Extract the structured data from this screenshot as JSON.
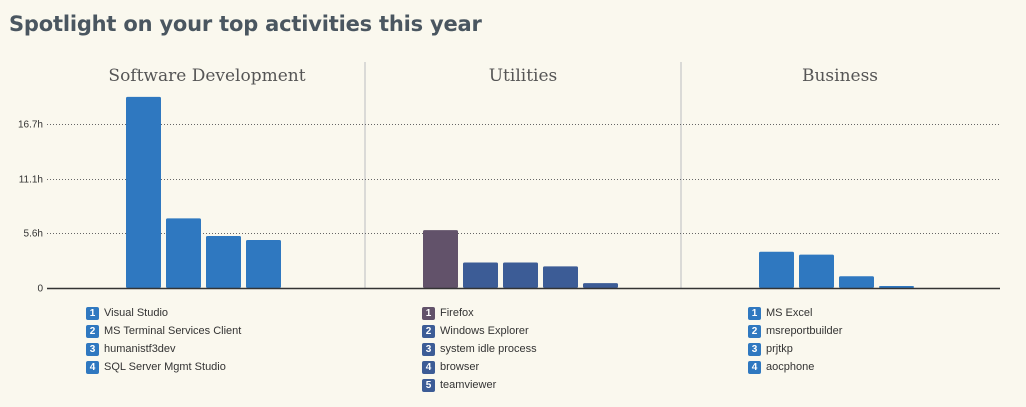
{
  "page": {
    "title": "Spotlight on your top activities this year"
  },
  "chart_data": {
    "type": "bar",
    "unit": "h",
    "ylim": [
      0,
      20.2
    ],
    "y_ticks": [
      {
        "value": 0,
        "label": "0"
      },
      {
        "value": 5.6,
        "label": "5.6h"
      },
      {
        "value": 11.1,
        "label": "11.1h"
      },
      {
        "value": 16.7,
        "label": "16.7h"
      }
    ],
    "grid": true,
    "colors": {
      "software": "#2f78c0",
      "utilities_first": "#62526a",
      "utilities_rest": "#3c5c96",
      "business": "#2f78c0",
      "divider": "#cfcfcf",
      "grid": "#666666",
      "axis": "#333333"
    },
    "groups": [
      {
        "title": "Software Development",
        "bars": [
          {
            "rank": "1",
            "label": "Visual Studio",
            "value": 19.5
          },
          {
            "rank": "2",
            "label": "MS Terminal Services Client",
            "value": 7.1
          },
          {
            "rank": "3",
            "label": "humanistf3dev",
            "value": 5.3
          },
          {
            "rank": "4",
            "label": "SQL Server Mgmt Studio",
            "value": 4.9
          }
        ]
      },
      {
        "title": "Utilities",
        "bars": [
          {
            "rank": "1",
            "label": "Firefox",
            "value": 5.9
          },
          {
            "rank": "2",
            "label": "Windows Explorer",
            "value": 2.6
          },
          {
            "rank": "3",
            "label": "system idle process",
            "value": 2.6
          },
          {
            "rank": "4",
            "label": "browser",
            "value": 2.2
          },
          {
            "rank": "5",
            "label": "teamviewer",
            "value": 0.5
          }
        ]
      },
      {
        "title": "Business",
        "bars": [
          {
            "rank": "1",
            "label": "MS Excel",
            "value": 3.7
          },
          {
            "rank": "2",
            "label": "msreportbuilder",
            "value": 3.4
          },
          {
            "rank": "3",
            "label": "prjtkp",
            "value": 1.2
          },
          {
            "rank": "4",
            "label": "aocphone",
            "value": 0.2
          }
        ]
      }
    ]
  }
}
